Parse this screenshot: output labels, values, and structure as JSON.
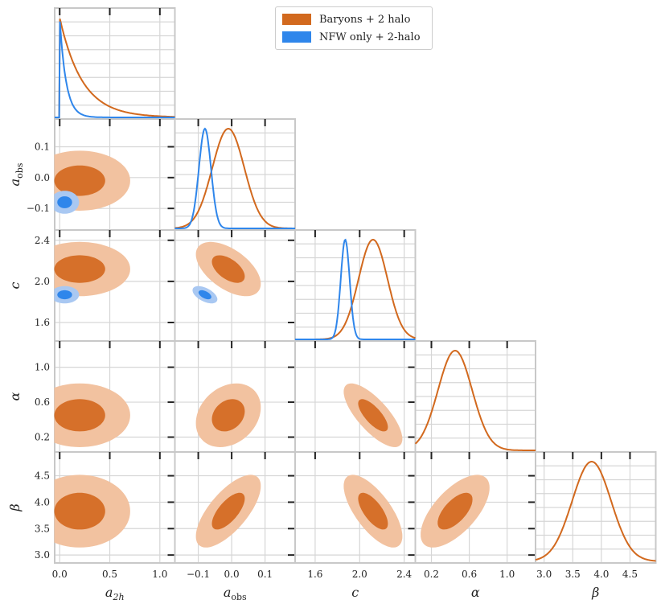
{
  "chart_data": {
    "type": "corner",
    "parameters": [
      {
        "key": "a2h",
        "label": "a",
        "sub": "2h",
        "ticks": [
          0.0,
          0.5,
          1.0
        ],
        "tick_labels": [
          "0.0",
          "0.5",
          "1.0"
        ],
        "range": [
          -0.05,
          1.15
        ]
      },
      {
        "key": "aobs",
        "label": "a",
        "sub": "obs",
        "ticks": [
          -0.1,
          0.0,
          0.1
        ],
        "tick_labels": [
          "−0.1",
          "0.0",
          "0.1"
        ],
        "range": [
          -0.17,
          0.19
        ]
      },
      {
        "key": "c",
        "label": "c",
        "sub": "",
        "ticks": [
          1.6,
          2.0,
          2.4
        ],
        "tick_labels": [
          "1.6",
          "2.0",
          "2.4"
        ],
        "range": [
          1.42,
          2.5
        ]
      },
      {
        "key": "alpha",
        "label": "α",
        "sub": "",
        "ticks": [
          0.2,
          0.6,
          1.0
        ],
        "tick_labels": [
          "0.2",
          "0.6",
          "1.0"
        ],
        "range": [
          0.03,
          1.3
        ]
      },
      {
        "key": "beta",
        "label": "β",
        "sub": "",
        "ticks": [
          3.0,
          3.5,
          4.0,
          4.5
        ],
        "tick_labels": [
          "3.0",
          "3.5",
          "4.0",
          "4.5"
        ],
        "range": [
          2.85,
          4.95
        ]
      }
    ],
    "series": [
      {
        "name": "Baryons + 2 halo",
        "color": "#d2691e",
        "fill_outer": "#f2c2a0",
        "fill_inner": "#d6702a",
        "means": {
          "a2h": 0.2,
          "aobs": -0.01,
          "c": 2.12,
          "alpha": 0.45,
          "beta": 3.83
        },
        "sigmas": {
          "a2h": 0.25,
          "aobs": 0.048,
          "c": 0.13,
          "alpha": 0.18,
          "beta": 0.34
        }
      },
      {
        "name": "NFW only + 2-halo",
        "color": "#2f86eb",
        "fill_outer": "#a9c8f2",
        "fill_inner": "#2f86eb",
        "means": {
          "a2h": 0.05,
          "aobs": -0.08,
          "c": 1.87,
          "alpha": null,
          "beta": null
        },
        "sigmas": {
          "a2h": 0.07,
          "aobs": 0.018,
          "c": 0.04,
          "alpha": null,
          "beta": null
        }
      }
    ],
    "legend_position": "top-center"
  },
  "legend": {
    "items": [
      {
        "label": "Baryons + 2 halo",
        "color": "#d2691e"
      },
      {
        "label": "NFW only + 2-halo",
        "color": "#2f86eb"
      }
    ]
  }
}
